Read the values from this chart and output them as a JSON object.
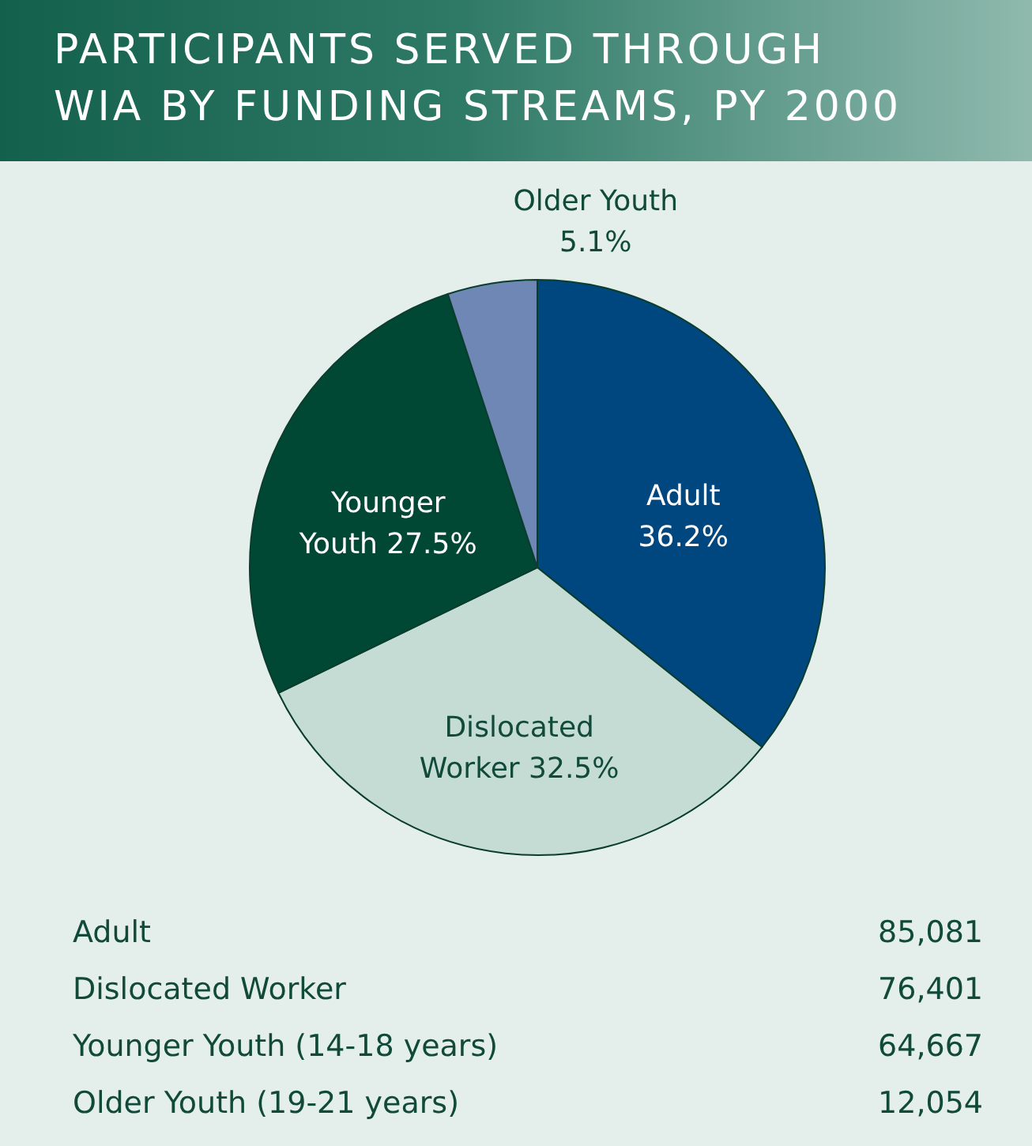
{
  "chart_data": {
    "type": "pie",
    "title": "PARTICIPANTS SERVED THROUGH WIA BY FUNDING STREAMS, PY 2000",
    "categories": [
      "Adult",
      "Dislocated Worker",
      "Younger Youth",
      "Older Youth"
    ],
    "values": [
      36.2,
      32.5,
      27.5,
      5.1
    ],
    "colors": [
      "#00467f",
      "#c5dcd5",
      "#004833",
      "#6f87b4"
    ],
    "value_labels": [
      "36.2%",
      "32.5%",
      "27.5%",
      "5.1%"
    ],
    "annotations": [
      "Adult",
      "85,081",
      "Dislocated Worker",
      "76,401",
      "Younger Youth (14-18 years)",
      "64,667",
      "Older Youth (19-21 years)",
      "12,054"
    ]
  }
}
